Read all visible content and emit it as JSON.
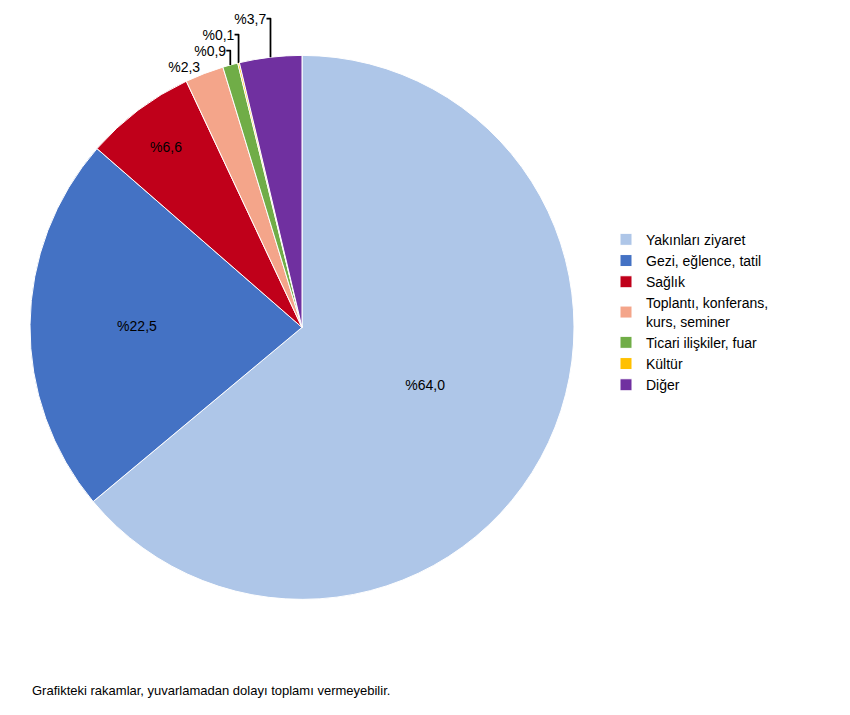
{
  "chart_data": {
    "type": "pie",
    "categories": [
      "Yakınları ziyaret",
      "Gezi, eğlence, tatil",
      "Sağlık",
      "Toplantı, konferans,\nkurs, seminer",
      "Ticari ilişkiler, fuar",
      "Kültür",
      "Diğer"
    ],
    "values": [
      64.0,
      22.5,
      6.6,
      2.3,
      0.9,
      0.1,
      3.7
    ],
    "value_labels": [
      "%64,0",
      "%22,5",
      "%6,6",
      "%2,3",
      "%0,9",
      "%0,1",
      "%3,7"
    ],
    "colors": [
      "#aec6e8",
      "#4472c4",
      "#c0001a",
      "#f4a58a",
      "#70ad47",
      "#ffc000",
      "#7030a0"
    ],
    "data_labels": true,
    "legend": "right",
    "annotations": [
      "Grafikteki rakamlar, yuvarlamadan dolayı toplamı vermeyebilir."
    ]
  }
}
